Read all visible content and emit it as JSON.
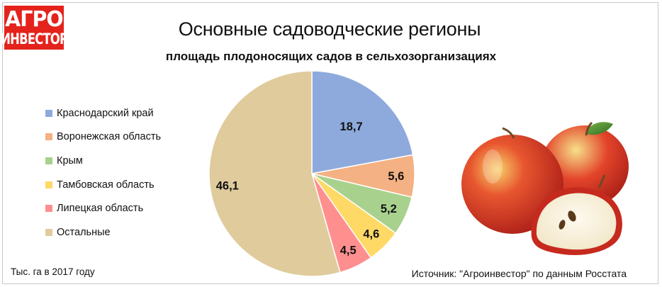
{
  "logo": {
    "line1": "АГРО",
    "line2": "ИНВЕСТОР"
  },
  "title": "Основные садоводческие регионы",
  "subtitle": "площадь плодоносящих садов в сельхозорганизациях",
  "note": "Тыс. га в 2017 году",
  "source": "Источник: \"Агроинвестор\" по данным Росстата",
  "chart_data": {
    "type": "pie",
    "title": "Основные садоводческие регионы",
    "subtitle": "площадь плодоносящих садов в сельхозорганизациях",
    "unit": "Тыс. га в 2017 году",
    "legend_placement": "left",
    "categories": [
      "Краснодарский край",
      "Воронежская область",
      "Крым",
      "Тамбовская область",
      "Липецкая область",
      "Остальные"
    ],
    "values": [
      18.7,
      5.6,
      5.2,
      4.6,
      4.5,
      46.1
    ],
    "labels": [
      "18,7",
      "5,6",
      "5,2",
      "4,6",
      "4,5",
      "46,1"
    ],
    "colors": [
      "#8eaadc",
      "#f4b183",
      "#a9d18e",
      "#ffd966",
      "#ff8f8f",
      "#e0cb9c"
    ]
  },
  "image": {
    "description_icon": "apples-illustration"
  }
}
